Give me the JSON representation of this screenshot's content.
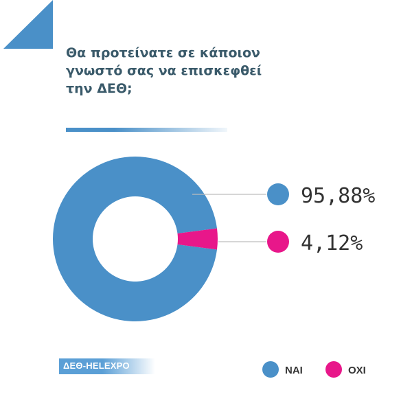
{
  "title_lines": [
    "Θα προτείνατε σε κάποιον",
    "γνωστό σας να επισκεφθεί",
    "την ΔΕΘ;"
  ],
  "brand_text": "ΔΕΘ-HELEXPO",
  "colors": {
    "accent": "#4a90c8",
    "nai": "#4a90c8",
    "oxi": "#e8178a",
    "text": "#3a5a6a"
  },
  "chart_data": {
    "type": "pie",
    "title": "Θα προτείνατε σε κάποιον γνωστό σας να επισκεφθεί την ΔΕΘ;",
    "donut": true,
    "categories": [
      "ΝΑΙ",
      "ΟΧΙ"
    ],
    "values": [
      95.88,
      4.12
    ],
    "data_labels": [
      "95,88%",
      "4,12%"
    ],
    "colors": [
      "#4a90c8",
      "#e8178a"
    ],
    "legend": {
      "position": "bottom-right",
      "entries": [
        "ΝΑΙ",
        "ΟΧΙ"
      ]
    }
  }
}
